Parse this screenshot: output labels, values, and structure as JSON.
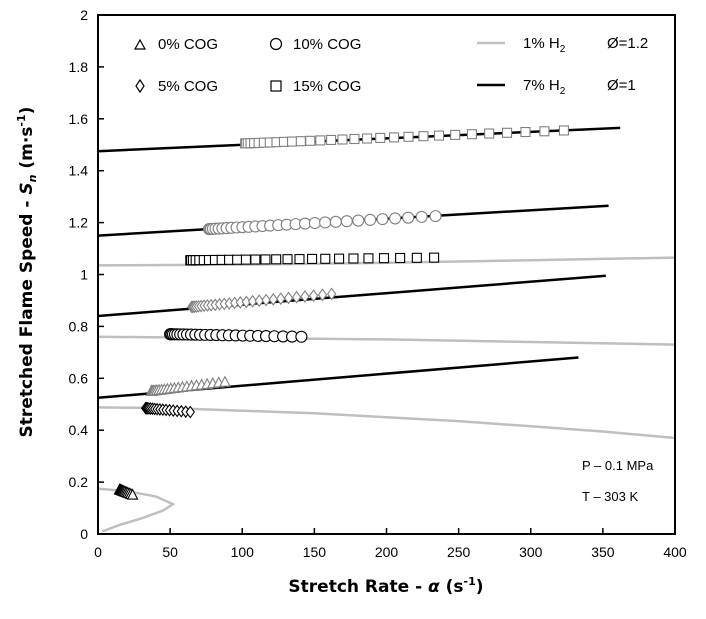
{
  "chart_data": {
    "type": "scatter",
    "title": "",
    "xlabel": {
      "main": "Stretch Rate - ",
      "symbol": "α",
      "unit_open": " (s",
      "unit_exp": "-1",
      "unit_close": ")"
    },
    "ylabel": {
      "main": "Stretched Flame Speed - ",
      "symbol": "S",
      "sub": "n",
      "unit_open": " (m·s",
      "unit_exp": "-1",
      "unit_close": ")"
    },
    "xlim": [
      0,
      400
    ],
    "ylim": [
      0,
      2
    ],
    "xticks": [
      "0",
      "50",
      "100",
      "150",
      "200",
      "250",
      "300",
      "350",
      "400"
    ],
    "yticks": [
      "0",
      "0.2",
      "0.4",
      "0.6",
      "0.8",
      "1",
      "1.2",
      "1.4",
      "1.6",
      "1.8",
      "2"
    ],
    "grid": false,
    "legend_markers": [
      {
        "label": "0% COG",
        "marker": "triangle"
      },
      {
        "label": "10% COG",
        "marker": "circle"
      },
      {
        "label": "5% COG",
        "marker": "diamond"
      },
      {
        "label": "15% COG",
        "marker": "square"
      }
    ],
    "legend_lines": [
      {
        "prefix": "1% H",
        "sub": "2",
        "phi": "Ø=1.2",
        "color": "#bfbfbf"
      },
      {
        "prefix": "7% H",
        "sub": "2",
        "phi": "Ø=1",
        "color": "#000000"
      }
    ],
    "annotations": [
      "P – 0.1 MPa",
      "T – 303 K"
    ],
    "series": [
      {
        "marker": "triangle",
        "color": "#000000",
        "x": [
          15,
          24
        ],
        "y": [
          0.17,
          0.15
        ],
        "n": 14
      },
      {
        "marker": "diamond",
        "color": "#000000",
        "x": [
          33,
          64
        ],
        "y": [
          0.485,
          0.47
        ],
        "n": 18
      },
      {
        "marker": "circle",
        "color": "#000000",
        "x": [
          50,
          141
        ],
        "y": [
          0.77,
          0.76
        ],
        "n": 26
      },
      {
        "marker": "square",
        "color": "#000000",
        "x": [
          64,
          233
        ],
        "y": [
          1.055,
          1.065
        ],
        "n": 26
      },
      {
        "marker": "triangle",
        "color": "#808080",
        "x": [
          37,
          88
        ],
        "y": [
          0.55,
          0.585
        ],
        "n": 22
      },
      {
        "marker": "diamond",
        "color": "#808080",
        "x": [
          65,
          162
        ],
        "y": [
          0.875,
          0.925
        ],
        "n": 28
      },
      {
        "marker": "circle",
        "color": "#808080",
        "x": [
          77,
          234
        ],
        "y": [
          1.175,
          1.225
        ],
        "n": 30
      },
      {
        "marker": "square",
        "color": "#808080",
        "x": [
          102,
          323
        ],
        "y": [
          1.505,
          1.555
        ],
        "n": 30
      }
    ],
    "fit_lines": [
      {
        "color": "#000000",
        "points": [
          [
            0,
            0.525
          ],
          [
            333,
            0.68
          ]
        ]
      },
      {
        "color": "#000000",
        "points": [
          [
            0,
            0.84
          ],
          [
            352,
            0.995
          ]
        ]
      },
      {
        "color": "#000000",
        "points": [
          [
            0,
            1.15
          ],
          [
            354,
            1.265
          ]
        ]
      },
      {
        "color": "#000000",
        "points": [
          [
            0,
            1.475
          ],
          [
            362,
            1.565
          ]
        ]
      },
      {
        "color": "#bfbfbf",
        "points": [
          [
            0,
            1.035
          ],
          [
            100,
            1.038
          ],
          [
            200,
            1.045
          ],
          [
            300,
            1.055
          ],
          [
            400,
            1.065
          ]
        ]
      },
      {
        "color": "#bfbfbf",
        "points": [
          [
            0,
            0.76
          ],
          [
            100,
            0.755
          ],
          [
            200,
            0.75
          ],
          [
            300,
            0.74
          ],
          [
            400,
            0.73
          ]
        ]
      },
      {
        "color": "#bfbfbf",
        "points": [
          [
            0,
            0.488
          ],
          [
            50,
            0.485
          ],
          [
            100,
            0.475
          ],
          [
            150,
            0.465
          ],
          [
            200,
            0.45
          ],
          [
            250,
            0.435
          ],
          [
            300,
            0.415
          ],
          [
            350,
            0.395
          ],
          [
            400,
            0.37
          ]
        ]
      },
      {
        "color": "#bfbfbf",
        "points": [
          [
            0,
            0.175
          ],
          [
            20,
            0.165
          ],
          [
            40,
            0.145
          ],
          [
            52,
            0.115
          ],
          [
            45,
            0.09
          ],
          [
            30,
            0.06
          ],
          [
            15,
            0.035
          ],
          [
            3,
            0.01
          ]
        ]
      }
    ]
  }
}
